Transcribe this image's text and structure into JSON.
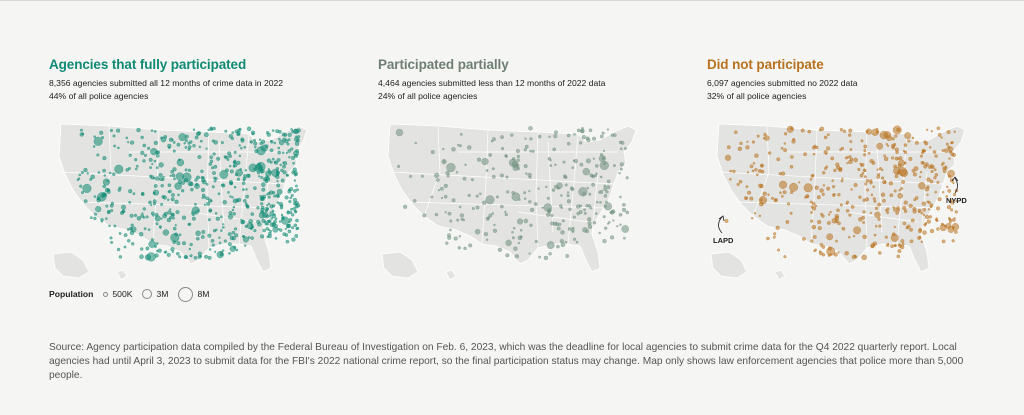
{
  "panels": [
    {
      "title": "Agencies that fully participated",
      "desc_line1": "8,356 agencies submitted all 12 months of crime data in 2022",
      "desc_line2": "44% of all police agencies",
      "color": "#0f8a73",
      "density": 1.0
    },
    {
      "title": "Participated partially",
      "desc_line1": "4,464 agencies submitted less than 12 months of 2022 data",
      "desc_line2": "24% of all police agencies",
      "color": "#6f8f7e",
      "density": 0.45
    },
    {
      "title": "Did not participate",
      "desc_line1": "6,097 agencies submitted no 2022 data",
      "desc_line2": "32% of all police agencies",
      "color": "#b8721f",
      "density": 0.7
    }
  ],
  "legend": {
    "label": "Population",
    "items": [
      "500K",
      "3M",
      "8M"
    ]
  },
  "callouts": {
    "nypd": "NYPD",
    "lapd": "LAPD"
  },
  "source_text": "Source: Agency participation data compiled by the Federal Bureau of Investigation on Feb. 6, 2023, which was the deadline for local agencies to submit crime data for the Q4 2022 quarterly report. Local agencies had until April 3, 2023 to submit data for the FBI's 2022 national crime report, so the final participation status may change. Map only shows law enforcement agencies that police more than 5,000 people.",
  "colors": {
    "background": "#f5f5f3",
    "land": "#e3e3e1",
    "border": "#ffffff"
  }
}
